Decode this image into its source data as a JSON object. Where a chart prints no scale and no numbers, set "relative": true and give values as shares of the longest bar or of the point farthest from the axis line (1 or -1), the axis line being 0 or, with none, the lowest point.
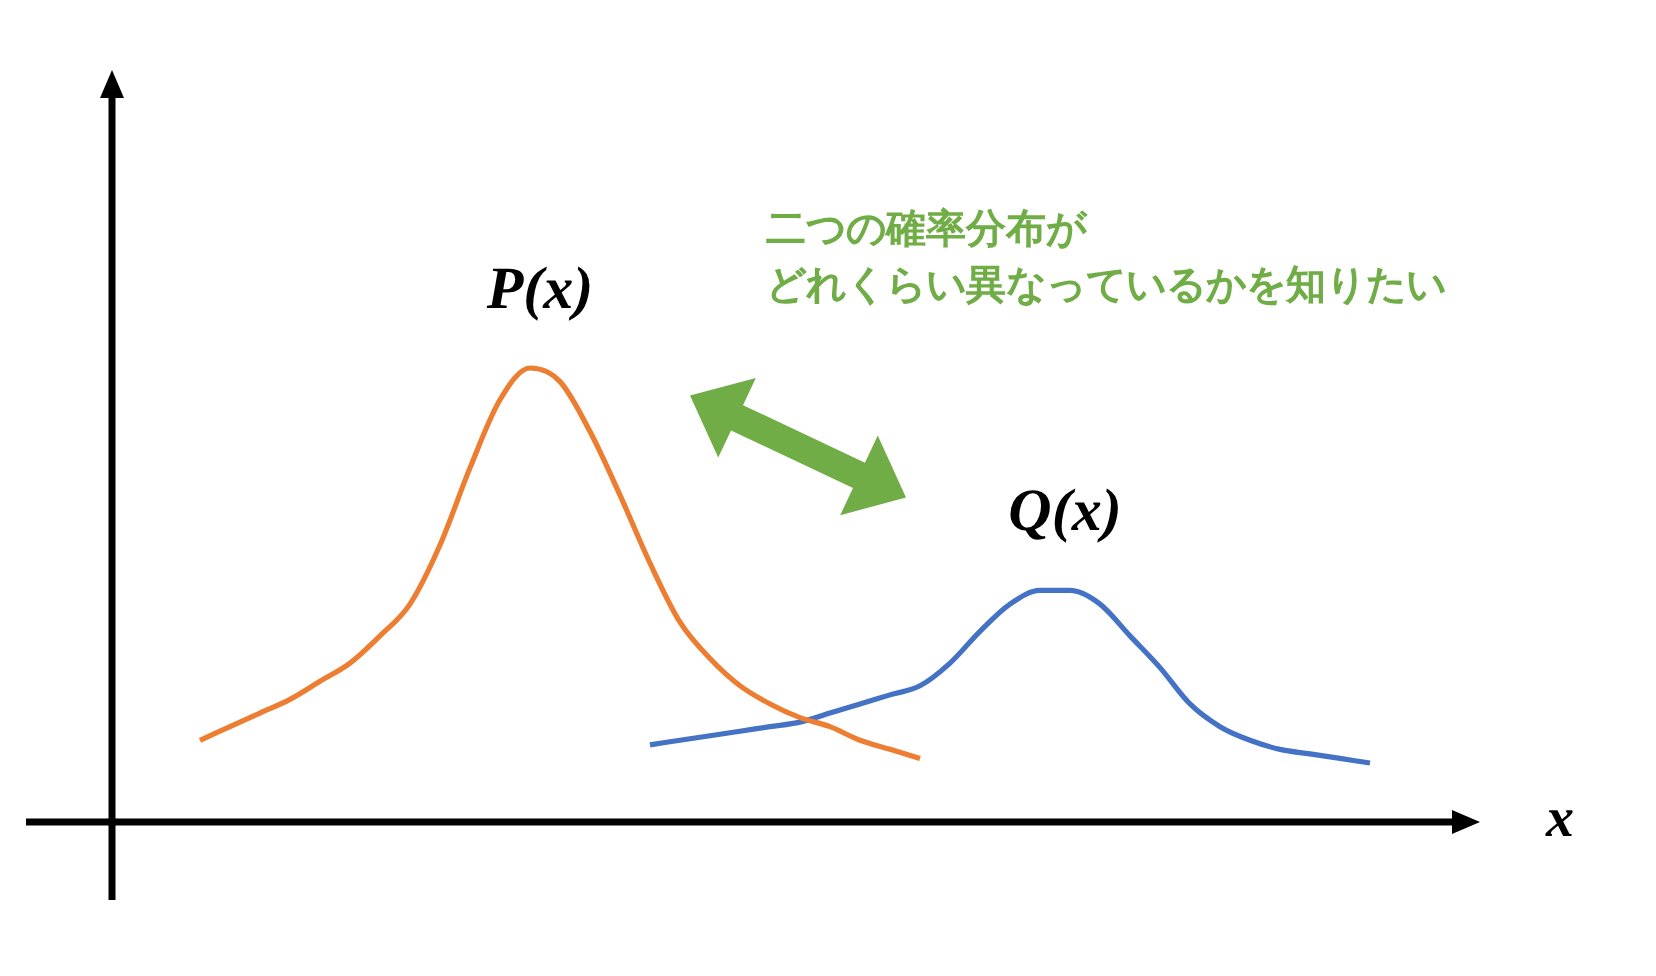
{
  "chart_data": {
    "type": "line",
    "relative": true,
    "xlabel": "x",
    "categories": [
      null,
      null,
      null,
      null,
      null,
      null,
      null,
      null,
      null,
      null,
      null,
      null,
      null,
      null,
      null,
      null,
      null,
      null,
      null,
      null,
      null,
      null,
      null,
      null,
      null,
      null,
      null,
      null,
      null,
      null,
      null,
      null,
      null,
      null,
      null,
      null,
      null,
      null,
      null,
      null
    ],
    "series": [
      {
        "name": "P(x)",
        "color": "#ed7d31",
        "values": [
          0.18,
          0.21,
          0.24,
          0.27,
          0.31,
          0.35,
          0.41,
          0.48,
          0.61,
          0.78,
          0.93,
          1.0,
          0.97,
          0.86,
          0.72,
          0.57,
          0.44,
          0.36,
          0.3,
          0.26,
          0.23,
          0.21,
          0.18,
          0.16,
          0.14,
          null,
          null,
          null,
          null,
          null,
          null,
          null,
          null,
          null,
          null,
          null,
          null,
          null,
          null,
          null
        ]
      },
      {
        "name": "Q(x)",
        "color": "#4472c4",
        "values": [
          null,
          null,
          null,
          null,
          null,
          null,
          null,
          null,
          null,
          null,
          null,
          null,
          null,
          null,
          null,
          0.17,
          0.18,
          0.19,
          0.2,
          0.21,
          0.22,
          0.24,
          0.26,
          0.28,
          0.3,
          0.35,
          0.42,
          0.48,
          0.51,
          0.51,
          0.48,
          0.41,
          0.34,
          0.26,
          0.21,
          0.18,
          0.16,
          0.15,
          0.14,
          0.13
        ]
      }
    ],
    "annotations": [
      "二つの確率分布が",
      "どれくらい異なっているかを知りたい"
    ]
  }
}
